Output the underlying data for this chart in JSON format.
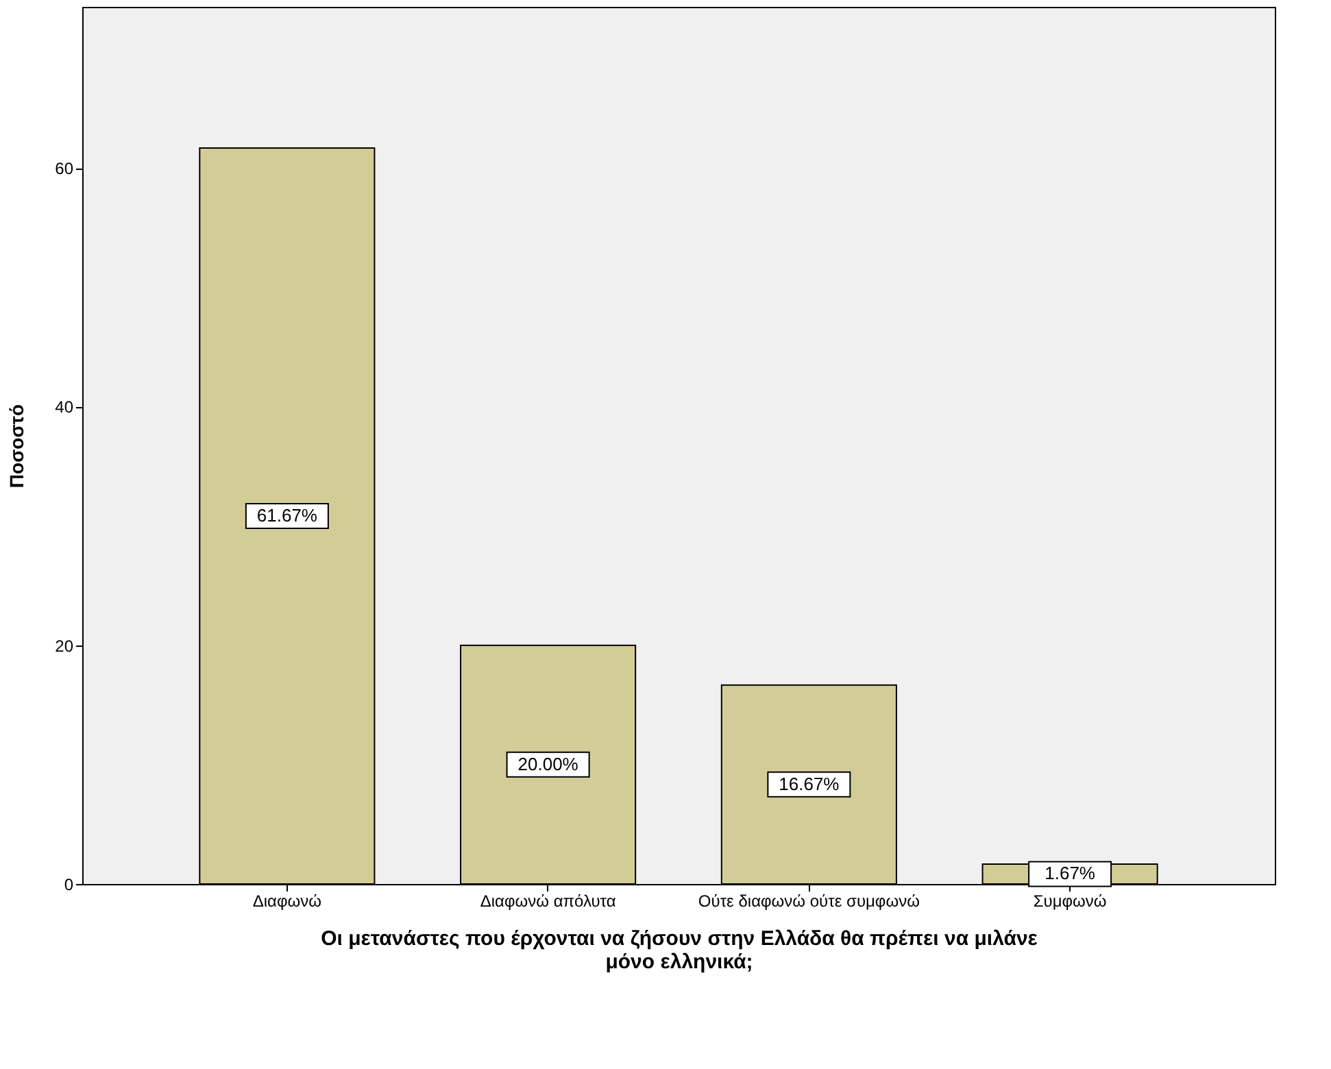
{
  "chart_data": {
    "type": "bar",
    "xlabel": "Οι μετανάστες που έρχονται να ζήσουν στην Ελλάδα θα πρέπει να μιλάνε μόνο ελληνικά;",
    "ylabel": "Ποσοστό",
    "categories": [
      "Διαφωνώ",
      "Διαφωνώ απόλυτα",
      "Ούτε διαφωνώ ούτε συμφωνώ",
      "Συμφωνώ"
    ],
    "values": [
      61.67,
      20.0,
      16.67,
      1.67
    ],
    "value_labels": [
      "61.67%",
      "20.00%",
      "16.67%",
      "1.67%"
    ],
    "color": "#d2cd96",
    "ylim": [
      0,
      73.5
    ],
    "yticks": [
      0,
      20,
      40,
      60
    ],
    "grid": false
  }
}
